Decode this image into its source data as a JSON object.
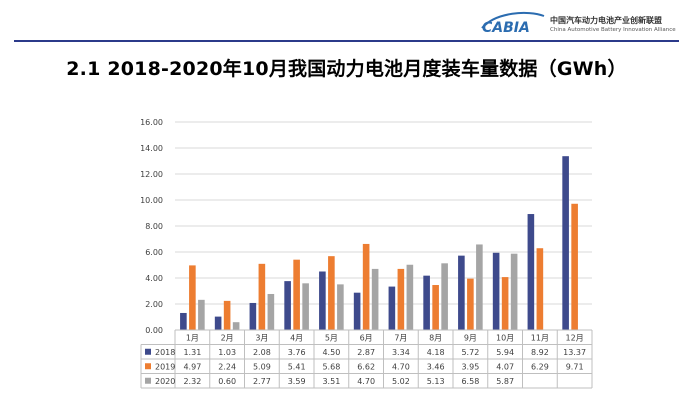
{
  "header": {
    "logo_text": "CABIA",
    "org_cn": "中国汽车动力电池产业创新联盟",
    "org_en": "China Automotive Battery Innovation Alliance",
    "title": "2.1 2018-2020年10月我国动力电池月度装车量数据（GWh）"
  },
  "colors": {
    "rule": "#2b3a8a",
    "logo": "#2b6cb0"
  },
  "chart_data": {
    "type": "bar",
    "categories": [
      "1月",
      "2月",
      "3月",
      "4月",
      "5月",
      "6月",
      "7月",
      "8月",
      "9月",
      "10月",
      "11月",
      "12月"
    ],
    "series": [
      {
        "name": "2018",
        "color": "#3e4a8c",
        "values": [
          1.31,
          1.03,
          2.08,
          3.76,
          4.5,
          2.87,
          3.34,
          4.18,
          5.72,
          5.94,
          8.92,
          13.37
        ],
        "labels": [
          "1.31",
          "1.03",
          "2.08",
          "3.76",
          "4.50",
          "2.87",
          "3.34",
          "4.18",
          "5.72",
          "5.94",
          "8.92",
          "13.37"
        ]
      },
      {
        "name": "2019",
        "color": "#ed7d31",
        "values": [
          4.97,
          2.24,
          5.09,
          5.41,
          5.68,
          6.62,
          4.7,
          3.46,
          3.95,
          4.07,
          6.29,
          9.71
        ],
        "labels": [
          "4.97",
          "2.24",
          "5.09",
          "5.41",
          "5.68",
          "6.62",
          "4.70",
          "3.46",
          "3.95",
          "4.07",
          "6.29",
          "9.71"
        ]
      },
      {
        "name": "2020",
        "color": "#a5a5a5",
        "values": [
          2.32,
          0.6,
          2.77,
          3.59,
          3.51,
          4.7,
          5.02,
          5.13,
          6.58,
          5.87,
          null,
          null
        ],
        "labels": [
          "2.32",
          "0.60",
          "2.77",
          "3.59",
          "3.51",
          "4.70",
          "5.02",
          "5.13",
          "6.58",
          "5.87",
          "",
          ""
        ]
      }
    ],
    "yticks": [
      "0.00",
      "2.00",
      "4.00",
      "6.00",
      "8.00",
      "10.00",
      "12.00",
      "14.00",
      "16.00"
    ],
    "ylim": [
      0,
      16
    ],
    "grid": true,
    "legend": "data-table"
  }
}
